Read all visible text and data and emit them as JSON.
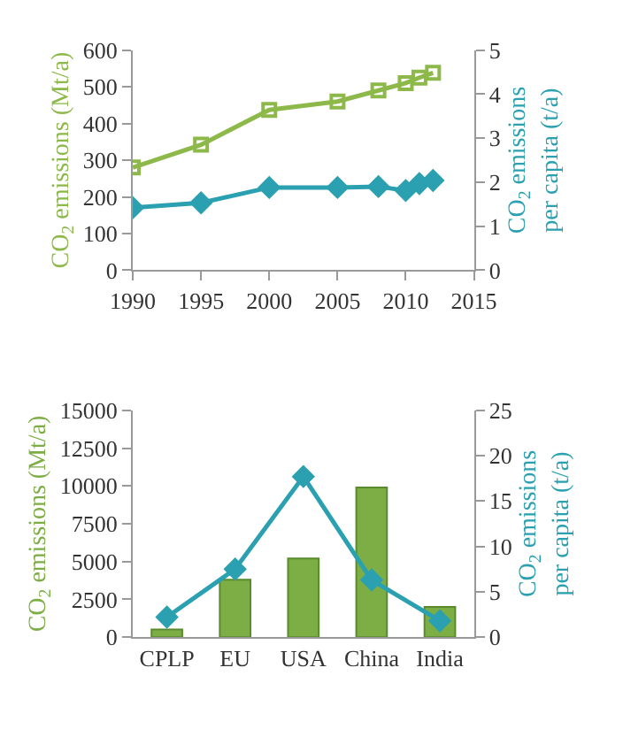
{
  "chart_data": [
    {
      "type": "line",
      "ylabel": "CO$_{2}$ emissions (Mt/a)",
      "y2label": "CO$_{2}$ emissions per capita (t/a)",
      "x": [
        1990,
        1995,
        2000,
        2005,
        2008,
        2010,
        2011,
        2012
      ],
      "series": [
        {
          "color": "#8db84a",
          "marker": "square",
          "values": [
            280,
            342,
            437,
            460,
            490,
            510,
            525,
            538
          ]
        },
        {
          "color": "#2aa0b0",
          "marker": "diamond",
          "axis": "y2",
          "values": [
            1.42,
            1.53,
            1.88,
            1.88,
            1.9,
            1.81,
            1.97,
            2.04
          ]
        }
      ],
      "xlim": [
        1990,
        2015
      ],
      "xticks": [
        1990,
        1995,
        2000,
        2005,
        2010,
        2015
      ],
      "ylim": [
        0,
        600
      ],
      "yticks": [
        0,
        100,
        200,
        300,
        400,
        500,
        600
      ],
      "y2lim": [
        0,
        5
      ],
      "y2ticks": [
        0,
        1,
        2,
        3,
        4,
        5
      ]
    },
    {
      "type": "bar",
      "ylabel": "CO$_{2}$ emissions (Mt/a)",
      "y2label": "CO$_{2}$ emissions per capita (t/a)",
      "categories": [
        "CPLP",
        "EU",
        "USA",
        "China",
        "India"
      ],
      "series": [
        {
          "color": "#7cae45",
          "values": [
            500,
            3800,
            5200,
            9900,
            2000
          ]
        },
        {
          "type": "line",
          "color": "#2aa0b0",
          "marker": "diamond",
          "axis": "y2",
          "values": [
            2.2,
            7.5,
            17.7,
            6.3,
            1.8
          ]
        }
      ],
      "ylim": [
        0,
        15000
      ],
      "yticks": [
        0,
        2500,
        5000,
        7500,
        10000,
        12500,
        15000
      ],
      "y2lim": [
        0,
        25
      ],
      "y2ticks": [
        0,
        5,
        10,
        15,
        20,
        25
      ]
    }
  ]
}
